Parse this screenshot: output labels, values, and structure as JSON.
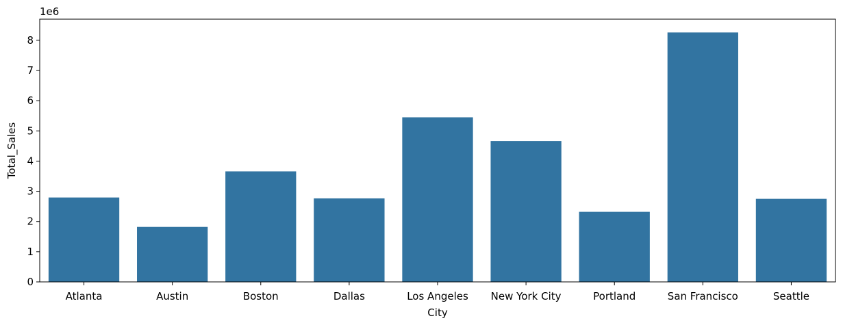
{
  "chart_data": {
    "type": "bar",
    "title": "",
    "xlabel": "City",
    "ylabel": "Total_Sales",
    "y_offset_label": "1e6",
    "categories": [
      "Atlanta",
      "Austin",
      "Boston",
      "Dallas",
      "Los Angeles",
      "New York City",
      "Portland",
      "San Francisco",
      "Seattle"
    ],
    "values": [
      2795000,
      1820000,
      3660000,
      2765000,
      5450000,
      4665000,
      2320000,
      8260000,
      2750000
    ],
    "ylim": [
      0,
      8700000
    ],
    "yticks": [
      0,
      1,
      2,
      3,
      4,
      5,
      6,
      7,
      8
    ],
    "ytick_scale": 1000000,
    "bar_color": "#3274a1",
    "grid": false,
    "legend": "none"
  }
}
